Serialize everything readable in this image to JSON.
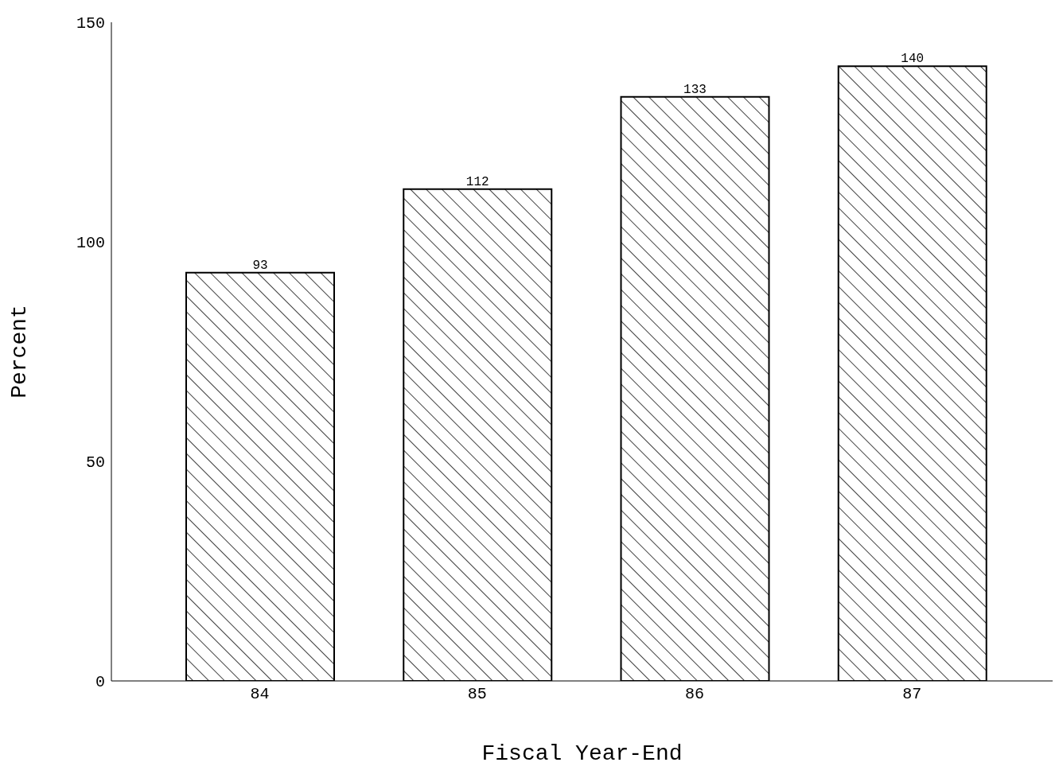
{
  "chart_data": {
    "type": "bar",
    "xlabel": "Fiscal Year-End",
    "ylabel": "Percent",
    "categories": [
      "84",
      "85",
      "86",
      "87"
    ],
    "values": [
      93,
      112,
      133,
      140
    ],
    "color": "#000000",
    "ylim": [
      0,
      150
    ],
    "yticks": [
      0,
      50,
      100,
      150
    ],
    "data_labels": true,
    "grid": false,
    "legend": false
  }
}
